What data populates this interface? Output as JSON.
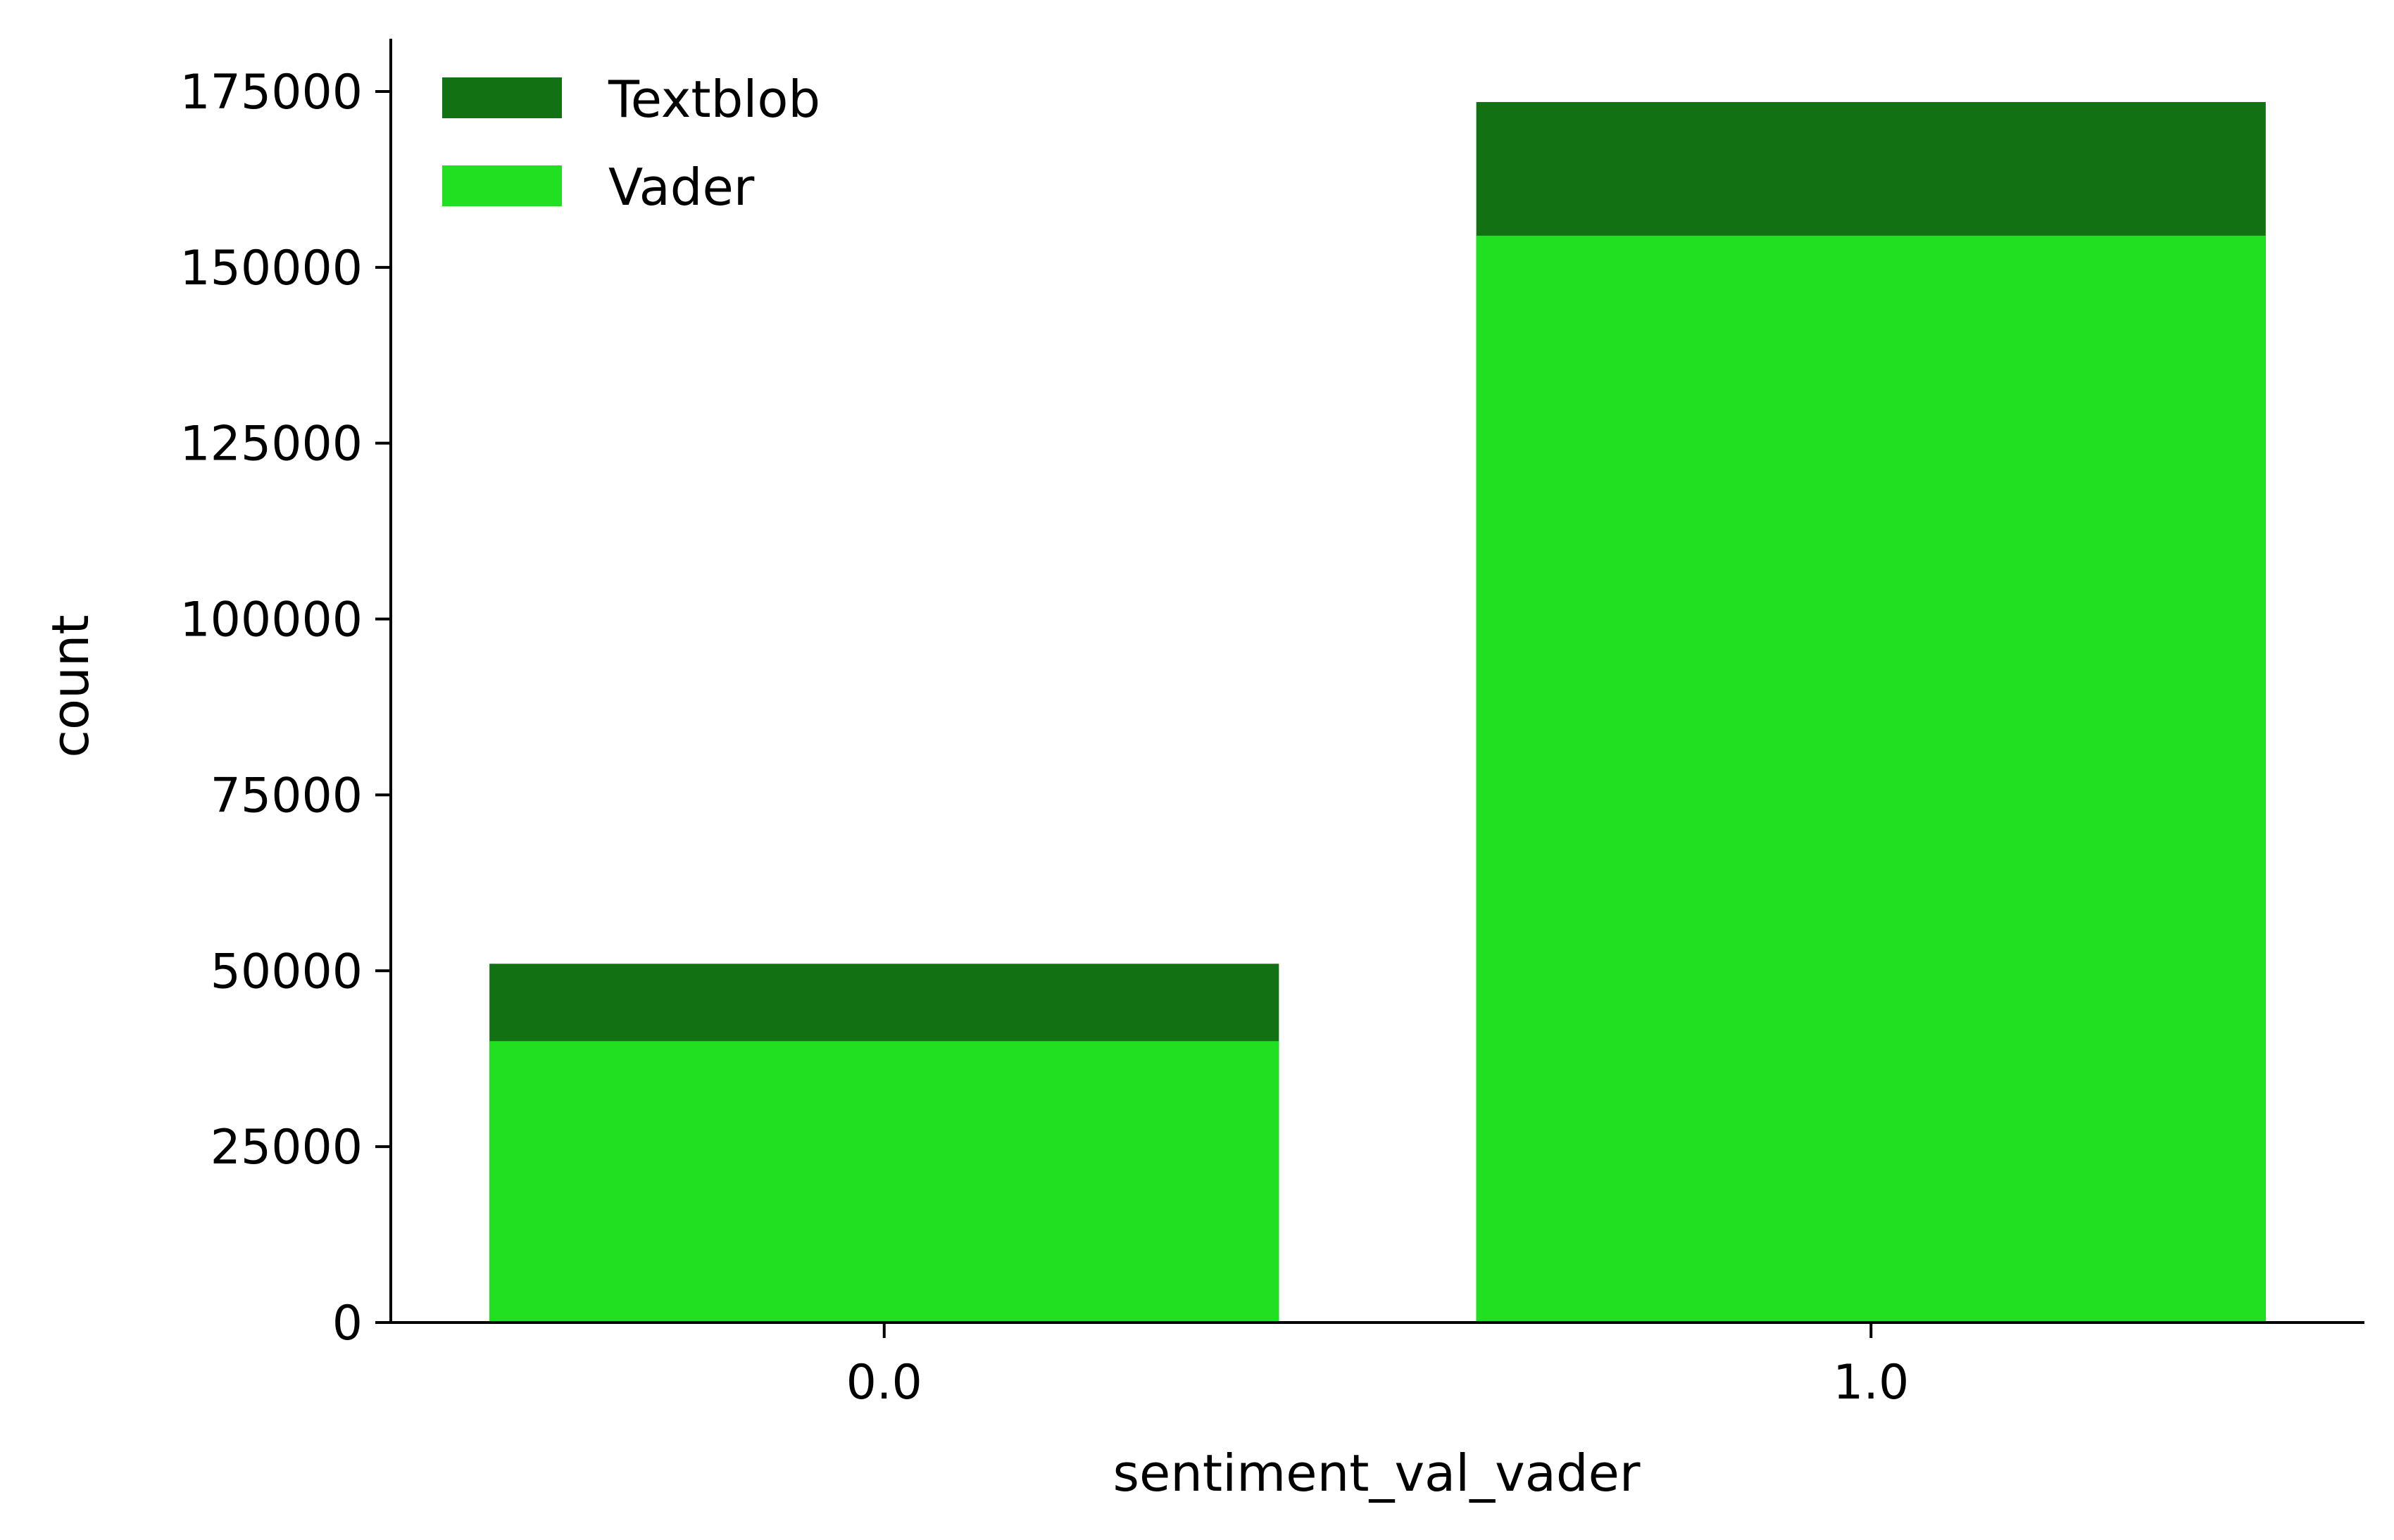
{
  "chart_data": {
    "type": "bar",
    "layout": "overlaid",
    "title": "",
    "xlabel": "sentiment_val_vader",
    "ylabel": "count",
    "categories": [
      "0.0",
      "1.0"
    ],
    "series": [
      {
        "name": "Textblob",
        "color": "#127112",
        "values": [
          51000,
          173500
        ]
      },
      {
        "name": "Vader",
        "color": "#21e021",
        "values": [
          40000,
          154500
        ]
      }
    ],
    "ylim": [
      0,
      182500
    ],
    "yticks": [
      0,
      25000,
      50000,
      75000,
      100000,
      125000,
      150000,
      175000
    ],
    "ytick_labels": [
      "0",
      "25000",
      "50000",
      "75000",
      "100000",
      "125000",
      "150000",
      "175000"
    ],
    "grid": false,
    "legend": {
      "position": "top-left",
      "frame": false
    }
  }
}
